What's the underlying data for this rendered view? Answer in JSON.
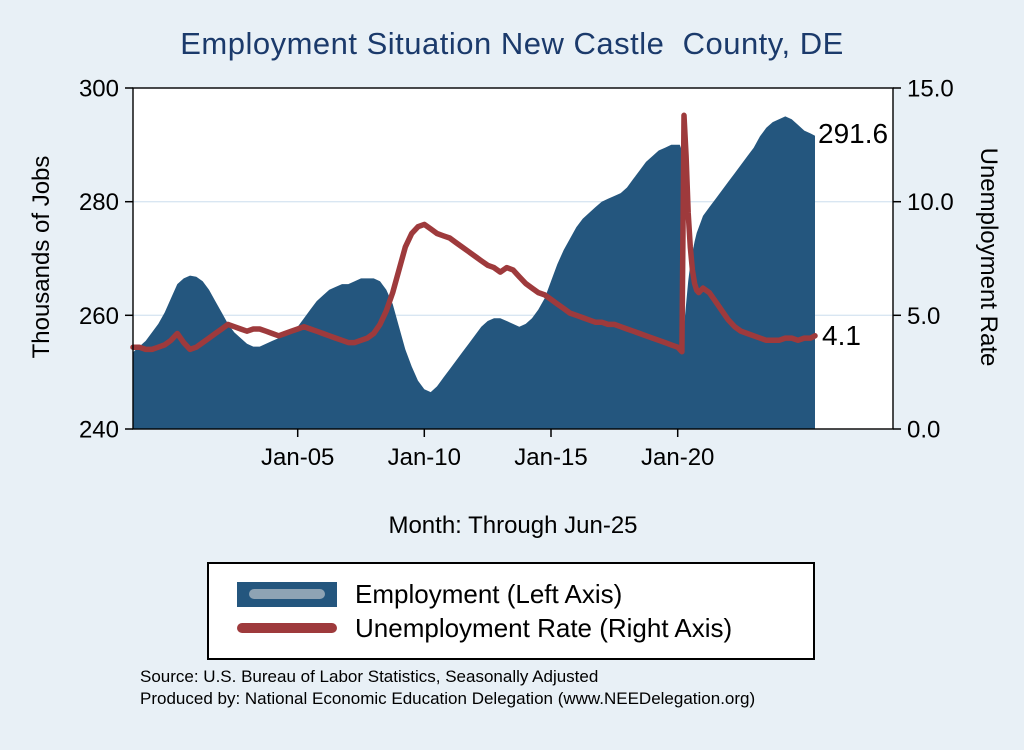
{
  "colors": {
    "background": "#e8f0f6",
    "employment": "#24567e",
    "unemployment": "#9e3a3c",
    "title": "#1b3a6b",
    "grid": "#d9e6f2",
    "frame": "#000000"
  },
  "chart_data": {
    "type": "area+line",
    "title": "Employment Situation New Castle  County, DE",
    "ylabel_left": "Thousands of Jobs",
    "ylabel_right": "Unemployment Rate",
    "xlabel": "Month: Through Jun-25",
    "x_range": [
      1998.5,
      2028.5
    ],
    "y_left": {
      "range": [
        240,
        300
      ],
      "tick_values": [
        240,
        260,
        280,
        300
      ],
      "tick_labels": [
        "240",
        "260",
        "280",
        "300"
      ]
    },
    "y_right": {
      "range": [
        0,
        15
      ],
      "tick_values": [
        0,
        5,
        10,
        15
      ],
      "tick_labels": [
        "0.0",
        "5.0",
        "10.0",
        "15.0"
      ]
    },
    "x_ticks": [
      {
        "value": 2005,
        "label": "Jan-05"
      },
      {
        "value": 2010,
        "label": "Jan-10"
      },
      {
        "value": 2015,
        "label": "Jan-15"
      },
      {
        "value": 2020,
        "label": "Jan-20"
      }
    ],
    "x": [
      1998.5,
      1998.75,
      1999,
      1999.25,
      1999.5,
      1999.75,
      2000,
      2000.25,
      2000.5,
      2000.75,
      2001,
      2001.25,
      2001.5,
      2001.75,
      2002,
      2002.25,
      2002.5,
      2002.75,
      2003,
      2003.25,
      2003.5,
      2003.75,
      2004,
      2004.25,
      2004.5,
      2004.75,
      2005,
      2005.25,
      2005.5,
      2005.75,
      2006,
      2006.25,
      2006.5,
      2006.75,
      2007,
      2007.25,
      2007.5,
      2007.75,
      2008,
      2008.25,
      2008.5,
      2008.75,
      2009,
      2009.25,
      2009.5,
      2009.75,
      2010,
      2010.25,
      2010.5,
      2010.75,
      2011,
      2011.25,
      2011.5,
      2011.75,
      2012,
      2012.25,
      2012.5,
      2012.75,
      2013,
      2013.25,
      2013.5,
      2013.75,
      2014,
      2014.25,
      2014.5,
      2014.75,
      2015,
      2015.25,
      2015.5,
      2015.75,
      2016,
      2016.25,
      2016.5,
      2016.75,
      2017,
      2017.25,
      2017.5,
      2017.75,
      2018,
      2018.25,
      2018.5,
      2018.75,
      2019,
      2019.25,
      2019.5,
      2019.75,
      2020,
      2020.083,
      2020.167,
      2020.25,
      2020.333,
      2020.417,
      2020.5,
      2020.583,
      2020.667,
      2020.75,
      2020.833,
      2020.917,
      2021,
      2021.25,
      2021.5,
      2021.75,
      2022,
      2022.25,
      2022.5,
      2022.75,
      2023,
      2023.25,
      2023.5,
      2023.75,
      2024,
      2024.25,
      2024.5,
      2024.75,
      2025,
      2025.25,
      2025.42
    ],
    "series": [
      {
        "name": "Employment (Left Axis)",
        "axis": "left",
        "type": "area",
        "values": [
          253.5,
          254.5,
          255.5,
          257,
          258.5,
          260.5,
          263,
          265.5,
          266.5,
          267,
          266.8,
          266,
          264.5,
          262.5,
          260.5,
          258.5,
          257,
          256,
          255,
          254.5,
          254.5,
          255,
          255.5,
          256,
          256.5,
          257,
          258,
          259.5,
          261,
          262.5,
          263.5,
          264.5,
          265,
          265.5,
          265.5,
          266,
          266.5,
          266.5,
          266.5,
          266,
          264.5,
          262,
          258,
          254,
          251,
          248.5,
          247,
          246.5,
          247.5,
          249,
          250.5,
          252,
          253.5,
          255,
          256.5,
          258,
          259,
          259.5,
          259.5,
          259,
          258.5,
          258,
          258.5,
          259.5,
          261,
          263,
          266,
          269,
          271.5,
          273.5,
          275.5,
          277,
          278,
          279,
          280,
          280.5,
          281,
          281.5,
          282.5,
          284,
          285.5,
          287,
          288,
          289,
          289.5,
          290,
          290,
          290,
          289,
          258,
          262,
          266,
          269,
          271,
          273,
          274.5,
          275.5,
          276.5,
          277.5,
          279,
          280.5,
          282,
          283.5,
          285,
          286.5,
          288,
          289.5,
          291.5,
          293,
          294,
          294.5,
          295,
          294.5,
          293.5,
          292.5,
          292,
          291.6
        ]
      },
      {
        "name": "Unemployment Rate (Right Axis)",
        "axis": "right",
        "type": "line",
        "values": [
          3.6,
          3.6,
          3.5,
          3.5,
          3.6,
          3.7,
          3.9,
          4.2,
          3.8,
          3.5,
          3.6,
          3.8,
          4,
          4.2,
          4.4,
          4.6,
          4.5,
          4.4,
          4.3,
          4.4,
          4.4,
          4.3,
          4.2,
          4.1,
          4.2,
          4.3,
          4.4,
          4.5,
          4.4,
          4.3,
          4.2,
          4.1,
          4,
          3.9,
          3.8,
          3.8,
          3.9,
          4,
          4.2,
          4.6,
          5.2,
          6,
          7,
          8,
          8.6,
          8.9,
          9,
          8.8,
          8.6,
          8.5,
          8.4,
          8.2,
          8,
          7.8,
          7.6,
          7.4,
          7.2,
          7.1,
          6.9,
          7.1,
          7,
          6.7,
          6.4,
          6.2,
          6,
          5.9,
          5.7,
          5.5,
          5.3,
          5.1,
          5,
          4.9,
          4.8,
          4.7,
          4.7,
          4.6,
          4.6,
          4.5,
          4.4,
          4.3,
          4.2,
          4.1,
          4,
          3.9,
          3.8,
          3.7,
          3.6,
          3.5,
          3.4,
          13.8,
          12,
          9.5,
          8,
          7,
          6.4,
          6.1,
          6,
          6.1,
          6.2,
          6,
          5.6,
          5.2,
          4.8,
          4.5,
          4.3,
          4.2,
          4.1,
          4,
          3.9,
          3.9,
          3.9,
          4,
          4,
          3.9,
          4,
          4,
          4.1
        ]
      }
    ],
    "annotations": [
      {
        "text": "291.6",
        "series": "employment"
      },
      {
        "text": "4.1",
        "series": "unemployment"
      }
    ]
  },
  "legend": {
    "items": [
      {
        "label": "Employment (Left Axis)"
      },
      {
        "label": "Unemployment Rate (Right Axis)"
      }
    ]
  },
  "footer": {
    "line1": "Source: U.S. Bureau of Labor Statistics, Seasonally Adjusted",
    "line2": "Produced by: National Economic Education Delegation (www.NEEDelegation.org)"
  }
}
